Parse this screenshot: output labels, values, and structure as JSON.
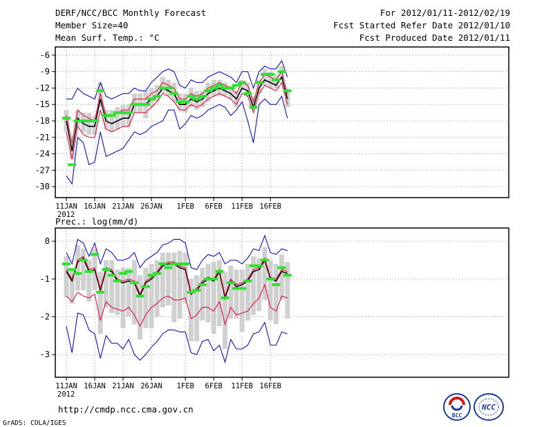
{
  "header": {
    "title": "DERF/NCC/BCC Monthly Forecast",
    "member_size": "Member Size=40",
    "variable": "Mean Surf. Temp.: °C",
    "period": "For 2012/01/11-2012/02/19",
    "start_date": "Fcst Started Refer Date 2012/01/10",
    "produced_date": "Fcst Produced Date 2012/01/11"
  },
  "footer": {
    "url": "http://cmdp.ncc.cma.gov.cn",
    "credit": "GrADS: COLA/IGES",
    "logo_bcc_text": "BCC",
    "logo_ncc_text": "NCC"
  },
  "colors": {
    "mean": "#000000",
    "spread": "#e0103a",
    "envelope": "#1010c0",
    "observed": "#30e030",
    "box": "#d0d0d0",
    "grid": "#909090"
  },
  "chart_data": [
    {
      "type": "line",
      "name": "temperature",
      "x": [
        "11JAN",
        "12",
        "13",
        "14",
        "15",
        "16JAN",
        "17",
        "18",
        "19",
        "20",
        "21JAN",
        "22",
        "23",
        "24",
        "25",
        "26JAN",
        "27",
        "28",
        "29",
        "30",
        "31",
        "1FEB",
        "2",
        "3",
        "4",
        "5",
        "6FEB",
        "7",
        "8",
        "9",
        "10",
        "11FEB",
        "12",
        "13",
        "14",
        "15",
        "16FEB",
        "17",
        "18",
        "19"
      ],
      "xticks": [
        "11JAN",
        "16JAN",
        "21JAN",
        "26JAN",
        "1FEB",
        "6FEB",
        "11FEB",
        "16FEB"
      ],
      "xtick_sub": "2012",
      "yticks": [
        -6,
        -9,
        -12,
        -15,
        -18,
        -21,
        -24,
        -27,
        -30
      ],
      "ylim": [
        -32,
        -4.5
      ],
      "series": [
        {
          "name": "ensemble-mean",
          "color": "#000000",
          "values": [
            -18,
            -23.5,
            -17.5,
            -18.5,
            -19,
            -19,
            -14,
            -18,
            -18.5,
            -18,
            -17.5,
            -17.5,
            -15,
            -15,
            -15,
            -14,
            -13.5,
            -12,
            -12.5,
            -13,
            -15,
            -15,
            -14,
            -14.5,
            -14,
            -13,
            -12.5,
            -12,
            -12.5,
            -13,
            -14,
            -12,
            -12.5,
            -15.5,
            -12,
            -10.5,
            -11,
            -11.5,
            -10,
            -14
          ]
        },
        {
          "name": "upper-spread",
          "color": "#e0103a",
          "values": [
            -17,
            -22,
            -16,
            -17,
            -17.5,
            -18,
            -13,
            -17,
            -17,
            -16.5,
            -16,
            -16,
            -14,
            -14,
            -14,
            -13,
            -12.5,
            -11,
            -11.5,
            -12,
            -14,
            -14,
            -13,
            -13.5,
            -13,
            -12,
            -11.5,
            -11,
            -11.5,
            -12,
            -13,
            -11,
            -11.5,
            -14.5,
            -11,
            -9.5,
            -10,
            -10.5,
            -9,
            -13
          ]
        },
        {
          "name": "lower-spread",
          "color": "#e0103a",
          "values": [
            -20,
            -25,
            -19,
            -20.5,
            -21,
            -21,
            -16,
            -19.5,
            -20,
            -19.5,
            -19,
            -19,
            -16.5,
            -16.5,
            -16.5,
            -15.5,
            -14.5,
            -13,
            -13.5,
            -14.5,
            -16,
            -16,
            -15,
            -15.5,
            -15,
            -14,
            -13.5,
            -13,
            -13.5,
            -14,
            -15,
            -13,
            -13.5,
            -16.5,
            -13,
            -11.5,
            -12,
            -12.5,
            -11,
            -15
          ]
        },
        {
          "name": "maximum",
          "color": "#1010c0",
          "values": [
            -14,
            -14,
            -12,
            -13,
            -13.5,
            -14,
            -11,
            -13.5,
            -14,
            -13.5,
            -13,
            -13,
            -12,
            -12.5,
            -12.5,
            -11,
            -10,
            -9,
            -8.5,
            -9,
            -11.5,
            -12,
            -10.5,
            -11,
            -11,
            -10,
            -9.5,
            -9,
            -9.5,
            -10,
            -11,
            -9,
            -9,
            -12,
            -9,
            -8,
            -8.5,
            -8.5,
            -7,
            -10
          ]
        },
        {
          "name": "minimum",
          "color": "#1010c0",
          "values": [
            -28,
            -29.5,
            -21,
            -22,
            -26,
            -25.5,
            -20,
            -24.5,
            -24,
            -23.5,
            -23,
            -21.5,
            -20,
            -20.5,
            -20,
            -19,
            -18.5,
            -18,
            -16,
            -16,
            -19.5,
            -18.5,
            -17,
            -17.5,
            -17,
            -16,
            -15.5,
            -15,
            -15.5,
            -17,
            -16,
            -14.5,
            -18,
            -22,
            -15,
            -14,
            -15,
            -15,
            -13.5,
            -17.5
          ]
        }
      ],
      "observed": [
        -17.5,
        -26,
        -18,
        -18,
        -18,
        -18,
        -12.5,
        -17,
        -17,
        -16.5,
        -16.5,
        -16.5,
        -15,
        -15,
        -15,
        -14,
        -13.5,
        -12,
        -12,
        -13,
        -14.5,
        -14.5,
        -13.5,
        -14,
        -13.5,
        -12.5,
        -12,
        -11.5,
        -12,
        -12,
        -11.5,
        -11,
        -13,
        -15.5,
        -11,
        -9.5,
        -9.5,
        -10.5,
        -9,
        -12.5
      ],
      "box_low": [
        -20,
        -25,
        -19,
        -20,
        -20.5,
        -20.5,
        -15.5,
        -19.5,
        -20,
        -19.5,
        -19,
        -19,
        -16.5,
        -16.5,
        -17.5,
        -15.5,
        -14.5,
        -13,
        -13.5,
        -14.5,
        -16,
        -16.5,
        -15.5,
        -16,
        -15.5,
        -14.5,
        -13.5,
        -13.5,
        -13.5,
        -14,
        -15.5,
        -12.5,
        -13.5,
        -16,
        -13,
        -11.5,
        -12,
        -12,
        -10.5,
        -15.5
      ],
      "box_high": [
        -16,
        -22,
        -16,
        -16.5,
        -16.5,
        -17,
        -11,
        -16,
        -16,
        -15.5,
        -15,
        -15,
        -13,
        -13,
        -12.5,
        -12,
        -11.5,
        -10,
        -10.5,
        -11,
        -13,
        -13,
        -12,
        -12.5,
        -12.5,
        -11,
        -10.5,
        -10.5,
        -11,
        -11.5,
        -12.5,
        -10.5,
        -11,
        -13.5,
        -10.5,
        -8.5,
        -9,
        -9.5,
        -8,
        -12.5
      ]
    },
    {
      "type": "line",
      "name": "precipitation",
      "title": "Prec.: log(mm/d)",
      "x": [
        "11JAN",
        "12",
        "13",
        "14",
        "15",
        "16JAN",
        "17",
        "18",
        "19",
        "20",
        "21JAN",
        "22",
        "23",
        "24",
        "25",
        "26JAN",
        "27",
        "28",
        "29",
        "30",
        "31",
        "1FEB",
        "2",
        "3",
        "4",
        "5",
        "6FEB",
        "7",
        "8",
        "9",
        "10",
        "11FEB",
        "12",
        "13",
        "14",
        "15",
        "16FEB",
        "17",
        "18",
        "19"
      ],
      "xticks": [
        "11JAN",
        "16JAN",
        "21JAN",
        "26JAN",
        "1FEB",
        "6FEB",
        "11FEB",
        "16FEB"
      ],
      "xtick_sub": "2012",
      "yticks": [
        0,
        -1,
        -2,
        -3
      ],
      "ylim": [
        -3.6,
        0.35
      ],
      "series": [
        {
          "name": "ensemble-mean",
          "color": "#000000",
          "values": [
            -0.8,
            -1.05,
            -0.55,
            -0.45,
            -0.8,
            -0.75,
            -1.3,
            -0.75,
            -0.8,
            -1.05,
            -1.1,
            -1.05,
            -1.1,
            -1.45,
            -1.1,
            -1.0,
            -0.85,
            -0.65,
            -0.6,
            -0.6,
            -0.7,
            -0.75,
            -1.4,
            -1.3,
            -1.1,
            -1.0,
            -1.05,
            -0.8,
            -1.5,
            -1.05,
            -1.2,
            -1.15,
            -1.05,
            -0.8,
            -0.75,
            -0.5,
            -1.0,
            -1.05,
            -0.8,
            -0.85
          ]
        },
        {
          "name": "upper-spread",
          "color": "#e0103a",
          "values": [
            -0.75,
            -1.0,
            -0.5,
            -0.4,
            -0.75,
            -0.7,
            -1.25,
            -0.7,
            -0.75,
            -1.0,
            -1.05,
            -1.0,
            -1.05,
            -1.4,
            -1.05,
            -0.95,
            -0.8,
            -0.6,
            -0.55,
            -0.55,
            -0.65,
            -0.7,
            -1.35,
            -1.25,
            -1.05,
            -0.95,
            -1.0,
            -0.75,
            -1.45,
            -1.0,
            -1.15,
            -1.1,
            -1.0,
            -0.75,
            -0.7,
            -0.45,
            -0.95,
            -1.0,
            -0.75,
            -0.8
          ]
        },
        {
          "name": "lower-spread",
          "color": "#e0103a",
          "values": [
            -1.45,
            -1.6,
            -1.35,
            -1.45,
            -1.5,
            -1.4,
            -2.1,
            -1.6,
            -1.75,
            -1.8,
            -1.85,
            -1.75,
            -1.95,
            -2.25,
            -1.95,
            -1.75,
            -1.65,
            -1.5,
            -1.45,
            -1.55,
            -1.55,
            -1.5,
            -2.05,
            -1.95,
            -1.75,
            -1.75,
            -1.85,
            -1.6,
            -2.2,
            -1.75,
            -1.95,
            -1.9,
            -1.85,
            -1.65,
            -1.5,
            -1.15,
            -1.75,
            -1.85,
            -1.45,
            -1.5
          ]
        },
        {
          "name": "maximum",
          "color": "#1010c0",
          "values": [
            -0.3,
            -0.6,
            0.05,
            -0.05,
            -0.4,
            -0.05,
            -0.6,
            -0.2,
            -0.3,
            -0.5,
            -0.5,
            -0.45,
            -0.3,
            -0.7,
            -0.5,
            -0.4,
            -0.3,
            -0.1,
            -0.05,
            0.05,
            0.05,
            -0.05,
            -0.7,
            -0.75,
            -0.5,
            -0.35,
            -0.4,
            -0.3,
            -0.6,
            -0.5,
            -0.5,
            -0.6,
            -0.45,
            -0.2,
            -0.25,
            0.15,
            -0.3,
            -0.35,
            -0.2,
            -0.25
          ]
        },
        {
          "name": "minimum",
          "color": "#1010c0",
          "values": [
            -2.25,
            -2.95,
            -1.9,
            -1.95,
            -2.35,
            -2.45,
            -3.1,
            -2.5,
            -2.7,
            -2.7,
            -2.85,
            -2.6,
            -3.0,
            -3.15,
            -3.0,
            -2.8,
            -2.65,
            -2.45,
            -2.35,
            -2.35,
            -2.4,
            -2.4,
            -2.95,
            -3.0,
            -2.65,
            -2.6,
            -2.9,
            -2.75,
            -3.2,
            -2.6,
            -2.85,
            -2.85,
            -2.75,
            -2.45,
            -2.4,
            -2.15,
            -2.75,
            -2.75,
            -2.4,
            -2.45
          ]
        }
      ],
      "observed": [
        -0.6,
        -0.75,
        -0.85,
        -0.5,
        -0.8,
        -0.35,
        -1.35,
        -0.75,
        -0.9,
        -1.05,
        -0.85,
        -0.8,
        -1.1,
        -1.45,
        -1.2,
        -0.9,
        -0.85,
        -0.6,
        -0.7,
        -0.6,
        -0.6,
        -0.6,
        -1.35,
        -1.3,
        -1.15,
        -1.0,
        -1.0,
        -0.8,
        -1.5,
        -1.1,
        -1.25,
        -1.25,
        -1.05,
        -0.65,
        -0.65,
        -0.5,
        -1.0,
        -1.15,
        -0.7,
        -0.9
      ],
      "box_low": [
        -1.5,
        -1.65,
        -1.3,
        -1.3,
        -1.6,
        -1.3,
        -2.45,
        -1.75,
        -1.9,
        -1.95,
        -2.3,
        -2.0,
        -2.2,
        -2.6,
        -2.3,
        -2.3,
        -2.0,
        -1.75,
        -1.7,
        -2.15,
        -2.05,
        -1.65,
        -2.65,
        -2.65,
        -2.1,
        -2.15,
        -2.45,
        -2.25,
        -2.85,
        -2.05,
        -2.05,
        -2.4,
        -2.1,
        -1.95,
        -1.85,
        -1.55,
        -2.1,
        -2.2,
        -1.55,
        -2.05
      ],
      "box_high": [
        -0.4,
        -0.8,
        -0.1,
        -0.2,
        -0.5,
        -0.2,
        -0.8,
        -0.5,
        -0.5,
        -0.75,
        -0.7,
        -0.7,
        -0.5,
        -0.9,
        -0.7,
        -0.6,
        -0.5,
        -0.3,
        -0.3,
        -0.3,
        -0.25,
        -0.3,
        -1.0,
        -0.9,
        -0.7,
        -0.6,
        -0.55,
        -0.5,
        -0.8,
        -0.65,
        -0.75,
        -0.75,
        -0.6,
        -0.4,
        -0.45,
        -0.15,
        -0.5,
        -0.6,
        -0.35,
        -0.55
      ]
    }
  ]
}
